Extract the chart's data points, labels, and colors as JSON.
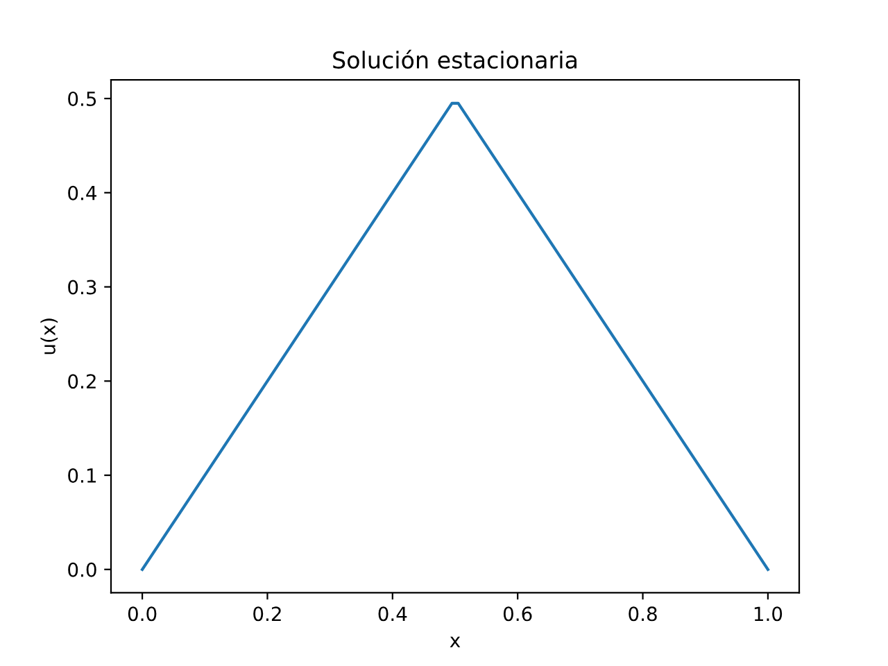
{
  "chart_data": {
    "type": "line",
    "title": "Solución estacionaria",
    "xlabel": "x",
    "ylabel": "u(x)",
    "x": [
      0,
      0.495,
      0.505,
      1
    ],
    "series": [
      {
        "color": "#1f77b4",
        "values": [
          0,
          0.495,
          0.495,
          0
        ]
      }
    ],
    "xlim": [
      -0.05,
      1.05
    ],
    "ylim": [
      -0.02475,
      0.51975
    ],
    "xticks": [
      {
        "value": 0,
        "label": "0.0"
      },
      0.2,
      0.4,
      0.6,
      0.8,
      {
        "value": 1,
        "label": "1.0"
      }
    ],
    "yticks": [
      {
        "value": 0,
        "label": "0.0"
      },
      0.1,
      0.2,
      0.3,
      0.4,
      0.5
    ],
    "grid": false,
    "legend": false,
    "marker": "none",
    "line_style": "solid"
  }
}
